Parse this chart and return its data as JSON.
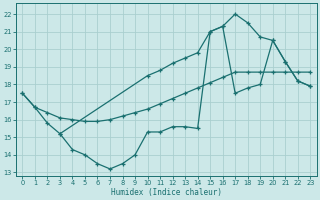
{
  "xlabel": "Humidex (Indice chaleur)",
  "bg_color": "#cce8e8",
  "grid_color": "#aacfcf",
  "line_color": "#1a7070",
  "xlim": [
    -0.5,
    23.5
  ],
  "ylim": [
    12.8,
    22.6
  ],
  "xticks": [
    0,
    1,
    2,
    3,
    4,
    5,
    6,
    7,
    8,
    9,
    10,
    11,
    12,
    13,
    14,
    15,
    16,
    17,
    18,
    19,
    20,
    21,
    22,
    23
  ],
  "yticks": [
    13,
    14,
    15,
    16,
    17,
    18,
    19,
    20,
    21,
    22
  ],
  "line1_x": [
    0,
    1,
    2,
    3,
    10,
    11,
    12,
    13,
    14,
    15,
    16,
    17,
    18,
    19,
    20,
    21,
    22,
    23
  ],
  "line1_y": [
    17.5,
    16.7,
    15.8,
    15.2,
    18.5,
    18.8,
    19.2,
    19.5,
    19.8,
    21.0,
    21.3,
    22.0,
    21.5,
    20.7,
    20.5,
    19.3,
    18.2,
    17.9
  ],
  "line2_x": [
    0,
    1,
    2,
    3,
    4,
    5,
    6,
    7,
    8,
    9,
    10,
    11,
    12,
    13,
    14,
    15,
    16,
    17,
    18,
    19,
    20,
    21,
    22,
    23
  ],
  "line2_y": [
    17.5,
    16.7,
    16.4,
    16.1,
    16.0,
    15.9,
    15.9,
    16.0,
    16.2,
    16.4,
    16.6,
    16.9,
    17.2,
    17.5,
    17.8,
    18.1,
    18.4,
    18.7,
    18.7,
    18.7,
    18.7,
    18.7,
    18.7,
    18.7
  ],
  "line3_x": [
    3,
    4,
    5,
    6,
    7,
    8,
    9,
    10,
    11,
    12,
    13,
    14,
    15,
    16,
    17,
    18,
    19,
    20,
    21,
    22,
    23
  ],
  "line3_y": [
    15.2,
    14.3,
    14.0,
    13.5,
    13.2,
    13.5,
    14.0,
    15.3,
    15.3,
    15.6,
    15.6,
    15.5,
    21.0,
    21.3,
    17.5,
    17.8,
    18.0,
    20.5,
    19.3,
    18.2,
    17.9
  ]
}
